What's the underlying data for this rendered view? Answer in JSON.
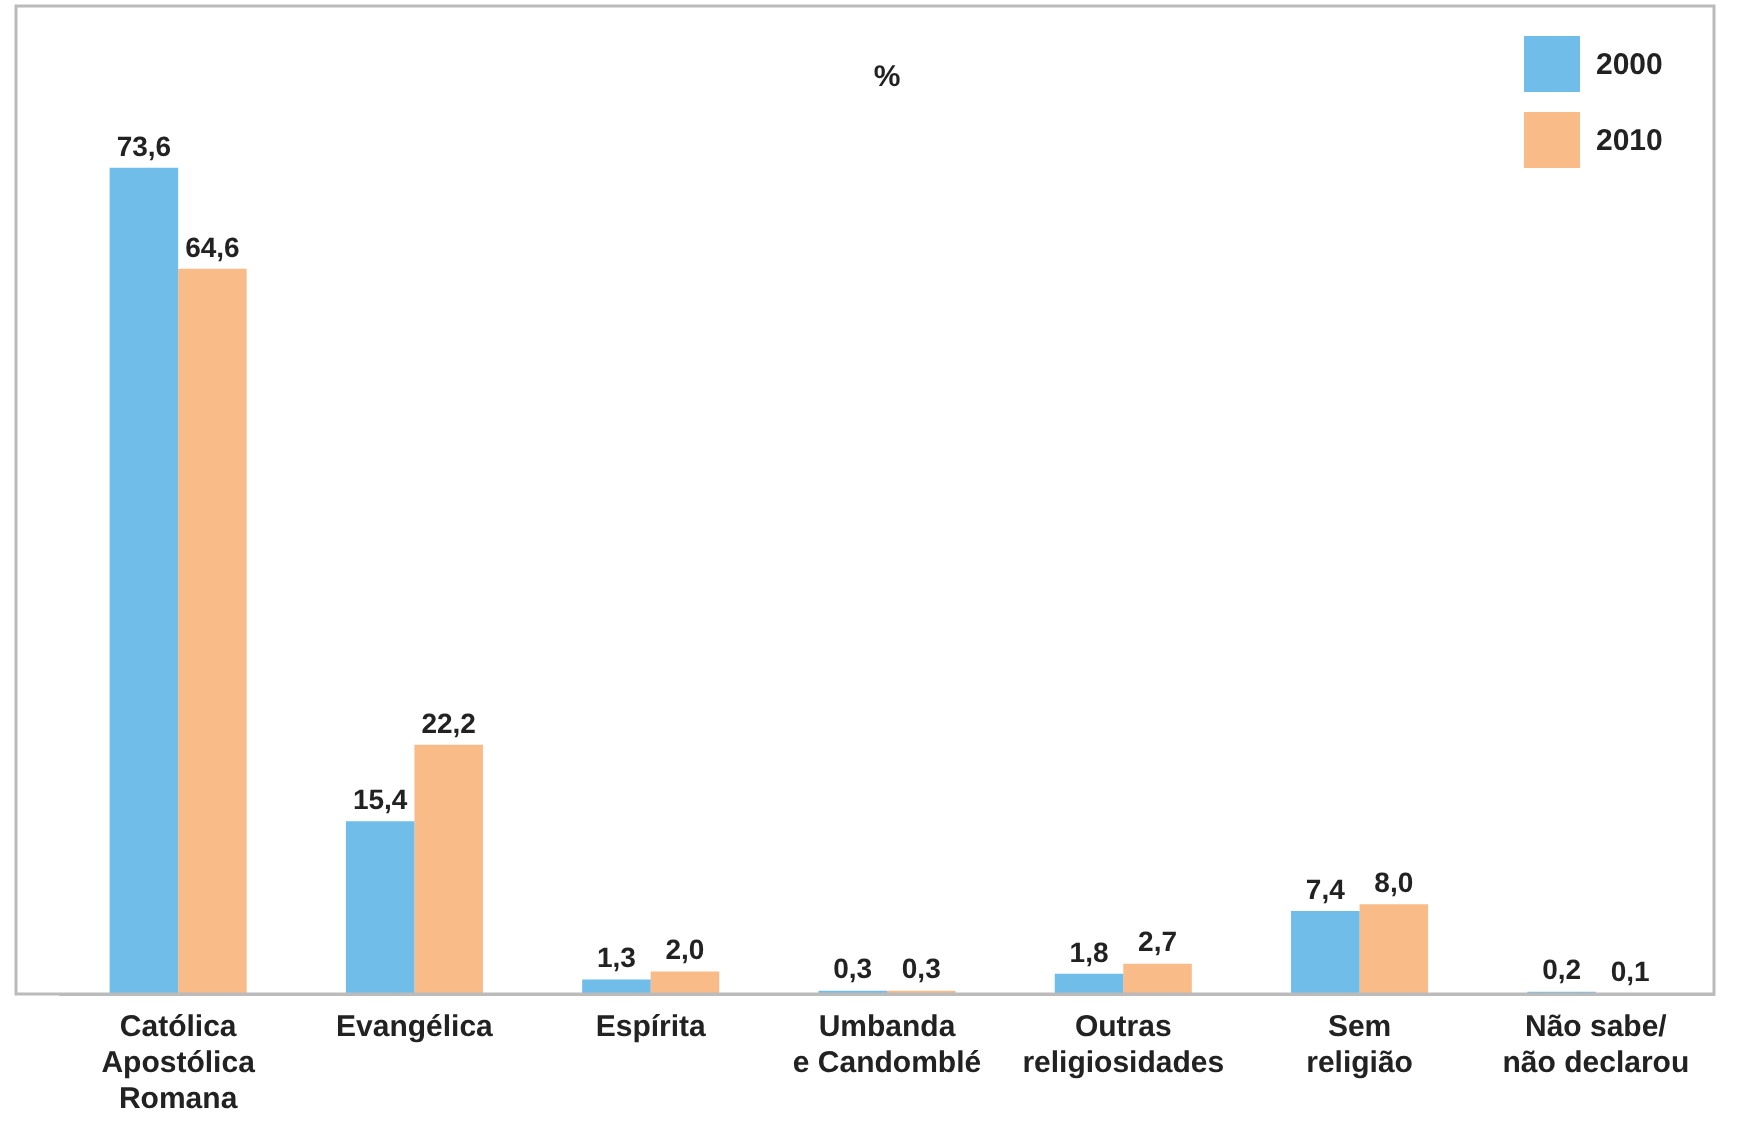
{
  "chart_data": {
    "type": "bar",
    "title": "%",
    "categories": [
      "Católica\nApostólica\nRomana",
      "Evangélica",
      "Espírita",
      "Umbanda\ne Candomblé",
      "Outras\nreligiosidades",
      "Sem\nreligião",
      "Não sabe/\nnão declarou"
    ],
    "series": [
      {
        "name": "2000",
        "color": "#6fbde8",
        "values": [
          73.6,
          15.4,
          1.3,
          0.3,
          1.8,
          7.4,
          0.2
        ],
        "value_labels": [
          "73,6",
          "15,4",
          "1,3",
          "0,3",
          "1,8",
          "7,4",
          "0,2"
        ]
      },
      {
        "name": "2010",
        "color": "#f9bb87",
        "values": [
          64.6,
          22.2,
          2.0,
          0.3,
          2.7,
          8.0,
          0.1
        ],
        "value_labels": [
          "64,6",
          "22,2",
          "2,0",
          "0,3",
          "2,7",
          "8,0",
          "0,1"
        ]
      }
    ],
    "legend": "top right",
    "grid": false,
    "tick_labels": "x"
  }
}
